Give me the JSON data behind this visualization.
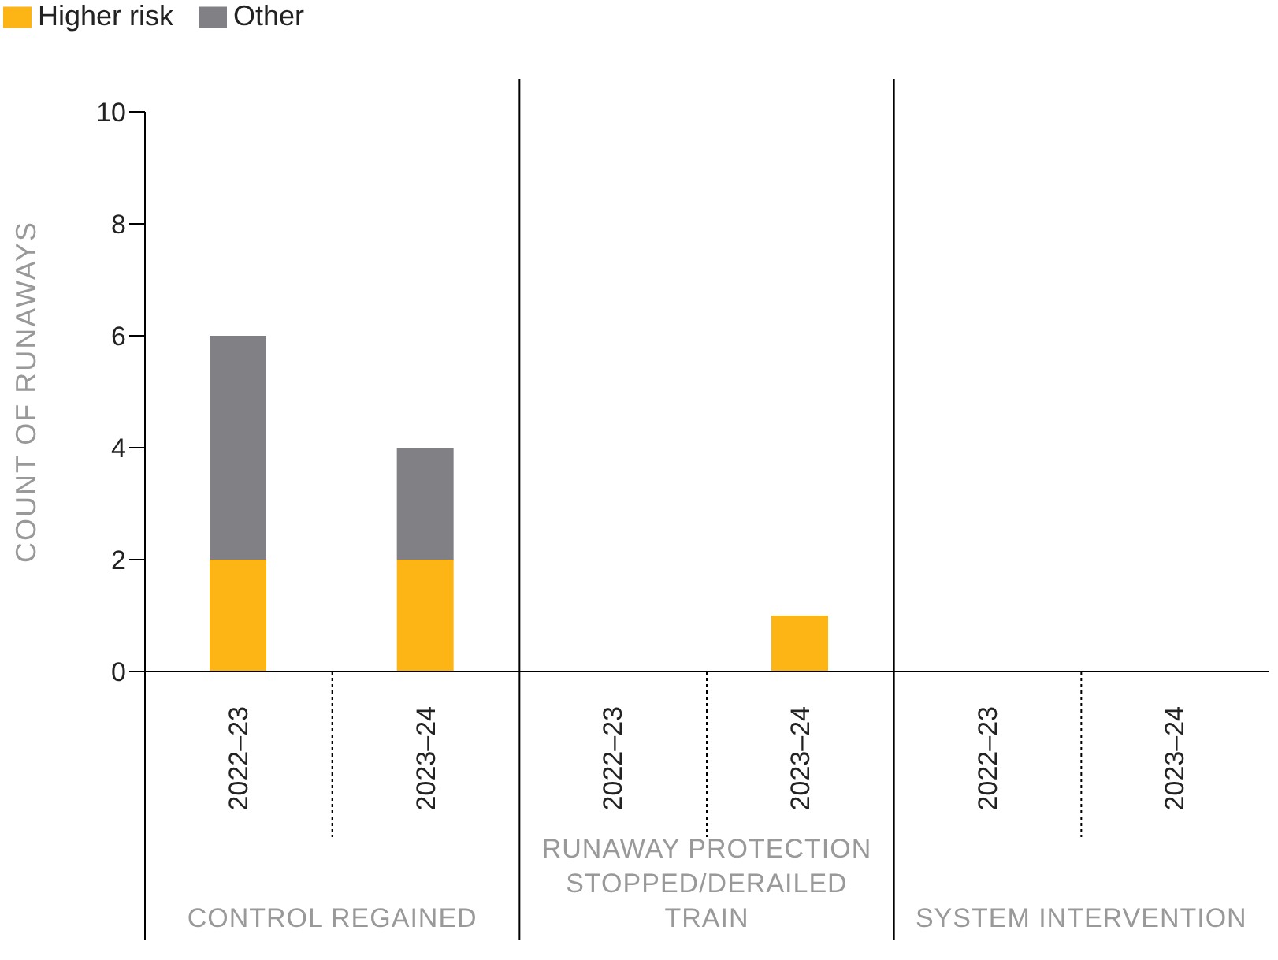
{
  "chart_data": {
    "type": "bar",
    "stacked": true,
    "ylabel": "COUNT OF RUNAWAYS",
    "categories": [
      "2022–23",
      "2023–24",
      "2022–23",
      "2023–24",
      "2022–23",
      "2023–24"
    ],
    "series": [
      {
        "name": "Higher risk",
        "color": "#fdb515",
        "values": [
          2,
          2,
          0,
          1,
          0,
          0
        ]
      },
      {
        "name": "Other",
        "color": "#808085",
        "values": [
          4,
          2,
          0,
          0,
          0,
          0
        ]
      }
    ],
    "ylim": [
      0,
      10
    ],
    "yticks": [
      0,
      2,
      4,
      6,
      8,
      10
    ],
    "legend": "top left",
    "annotations": [
      "CONTROL REGAINED",
      "RUNAWAY PROTECTION STOPPED/DERAILED TRAIN",
      "SYSTEM INTERVENTION"
    ]
  }
}
